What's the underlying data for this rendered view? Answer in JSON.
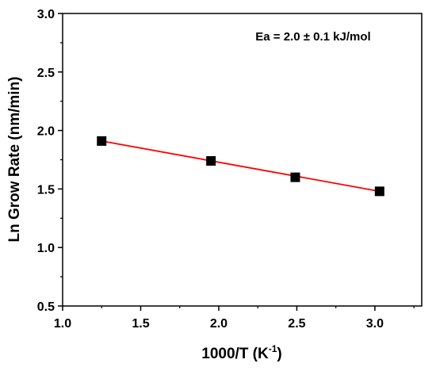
{
  "chart_data": {
    "type": "scatter",
    "xlabel_main": "1000/T (K",
    "xlabel_sup": "-1",
    "xlabel_close": ")",
    "ylabel": "Ln Grow Rate (nm/min)",
    "annotation": "Ea = 2.0 ± 0.1 kJ/mol",
    "xlim": [
      1.0,
      3.3
    ],
    "ylim": [
      0.5,
      3.0
    ],
    "x_ticks": [
      "1.0",
      "1.5",
      "2.0",
      "2.5",
      "3.0"
    ],
    "y_ticks": [
      "0.5",
      "1.0",
      "1.5",
      "2.0",
      "2.5",
      "3.0"
    ],
    "series": [
      {
        "marker": "square",
        "color": "#000000",
        "x": [
          1.25,
          1.95,
          2.49,
          3.03
        ],
        "y": [
          1.91,
          1.74,
          1.6,
          1.48
        ]
      }
    ],
    "fit": {
      "color": "#ff0000",
      "x": [
        1.25,
        3.03
      ],
      "y": [
        1.91,
        1.48
      ]
    },
    "grid": false
  }
}
